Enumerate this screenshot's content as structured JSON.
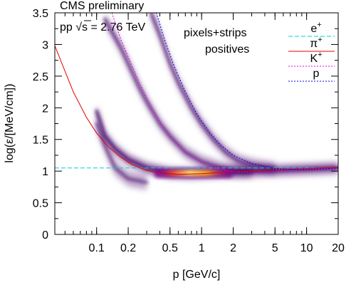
{
  "chart_data": {
    "type": "line",
    "title": "CMS preliminary",
    "annotations": {
      "energy_prefix": "pp ",
      "energy_value": "s = 2.76 TeV",
      "detector": "pixels+strips",
      "charge": "positives"
    },
    "xlabel": "p [GeV/c]",
    "ylabel": "log(ε/[MeV/cm])",
    "x_scale": "log",
    "xlim": [
      0.04,
      20
    ],
    "ylim": [
      0,
      3.5
    ],
    "x_ticks": [
      0.1,
      0.2,
      0.5,
      1,
      2,
      5,
      10,
      20
    ],
    "x_tick_labels": [
      "0.1",
      "0.2",
      "0.5",
      "1",
      "2",
      "5",
      "10",
      "20"
    ],
    "y_ticks": [
      0,
      0.5,
      1,
      1.5,
      2,
      2.5,
      3,
      3.5
    ],
    "y_tick_labels": [
      "0",
      "0.5",
      "1",
      "1.5",
      "2",
      "2.5",
      "3",
      "3.5"
    ],
    "grid": false,
    "legend_position": "top-right",
    "colors": {
      "e_plus": "#00d2d2",
      "pi_plus": "#e00000",
      "K_plus": "#e000e0",
      "p": "#0000e0"
    },
    "series": [
      {
        "name": "e+",
        "base": "e",
        "sup": "+",
        "color_key": "e_plus",
        "dash": "dashed",
        "x": [
          0.04,
          0.1,
          1,
          10,
          20
        ],
        "y": [
          1.05,
          1.05,
          1.05,
          1.05,
          1.05
        ]
      },
      {
        "name": "π+",
        "base": "π",
        "sup": "+",
        "color_key": "pi_plus",
        "dash": "solid",
        "x": [
          0.04,
          0.06,
          0.08,
          0.1,
          0.13,
          0.17,
          0.22,
          0.3,
          0.4,
          0.6,
          1,
          2,
          5,
          10,
          20
        ],
        "y": [
          2.98,
          2.25,
          1.85,
          1.6,
          1.38,
          1.22,
          1.1,
          1.01,
          0.97,
          0.95,
          0.96,
          0.99,
          1.02,
          1.04,
          1.06
        ]
      },
      {
        "name": "K+",
        "base": "K",
        "sup": "+",
        "color_key": "K_plus",
        "dash": "dotted",
        "x": [
          0.14,
          0.17,
          0.2,
          0.25,
          0.3,
          0.4,
          0.5,
          0.7,
          1,
          1.5,
          2,
          3,
          5,
          10,
          20
        ],
        "y": [
          3.5,
          3.08,
          2.8,
          2.42,
          2.15,
          1.78,
          1.55,
          1.3,
          1.14,
          1.03,
          0.99,
          0.98,
          0.99,
          1.02,
          1.05
        ]
      },
      {
        "name": "p",
        "base": "p",
        "sup": "",
        "color_key": "p",
        "dash": "dotted",
        "x": [
          0.37,
          0.45,
          0.55,
          0.7,
          0.9,
          1.2,
          1.5,
          2,
          3,
          5,
          10,
          20
        ],
        "y": [
          3.5,
          3.05,
          2.65,
          2.25,
          1.9,
          1.6,
          1.42,
          1.25,
          1.12,
          1.04,
          1.02,
          1.05
        ]
      }
    ],
    "density_bands": [
      {
        "label": "pi",
        "x": [
          0.1,
          0.12,
          0.15,
          0.2,
          0.3,
          0.5,
          0.8,
          1.2,
          2,
          5,
          10,
          20
        ],
        "y": [
          1.95,
          1.55,
          1.35,
          1.18,
          1.05,
          0.97,
          0.96,
          0.97,
          0.99,
          1.01,
          1.03,
          1.05
        ],
        "width": 0.09,
        "opacity": 0.55
      },
      {
        "label": "pi-low",
        "x": [
          0.1,
          0.12,
          0.15,
          0.2,
          0.3
        ],
        "y": [
          1.75,
          1.4,
          1.05,
          0.88,
          0.82
        ],
        "width": 0.12,
        "opacity": 0.35
      },
      {
        "label": "K",
        "x": [
          0.12,
          0.14,
          0.17,
          0.2,
          0.25,
          0.3,
          0.4,
          0.5,
          0.7,
          1,
          1.5,
          2,
          3
        ],
        "y": [
          3.4,
          3.2,
          2.95,
          2.7,
          2.35,
          2.1,
          1.75,
          1.55,
          1.3,
          1.15,
          1.05,
          1.0,
          0.99
        ],
        "width": 0.1,
        "opacity": 0.4
      },
      {
        "label": "p",
        "x": [
          0.33,
          0.4,
          0.5,
          0.6,
          0.8,
          1.0,
          1.3,
          1.7,
          2.2,
          3,
          5
        ],
        "y": [
          3.5,
          3.15,
          2.7,
          2.4,
          2.0,
          1.75,
          1.5,
          1.3,
          1.17,
          1.1,
          1.04
        ],
        "width": 0.1,
        "opacity": 0.4
      }
    ],
    "hot_core": {
      "x_center": 0.7,
      "y_center": 0.97,
      "x_min": 0.35,
      "x_max": 2.0,
      "y_half_width": 0.05
    }
  }
}
